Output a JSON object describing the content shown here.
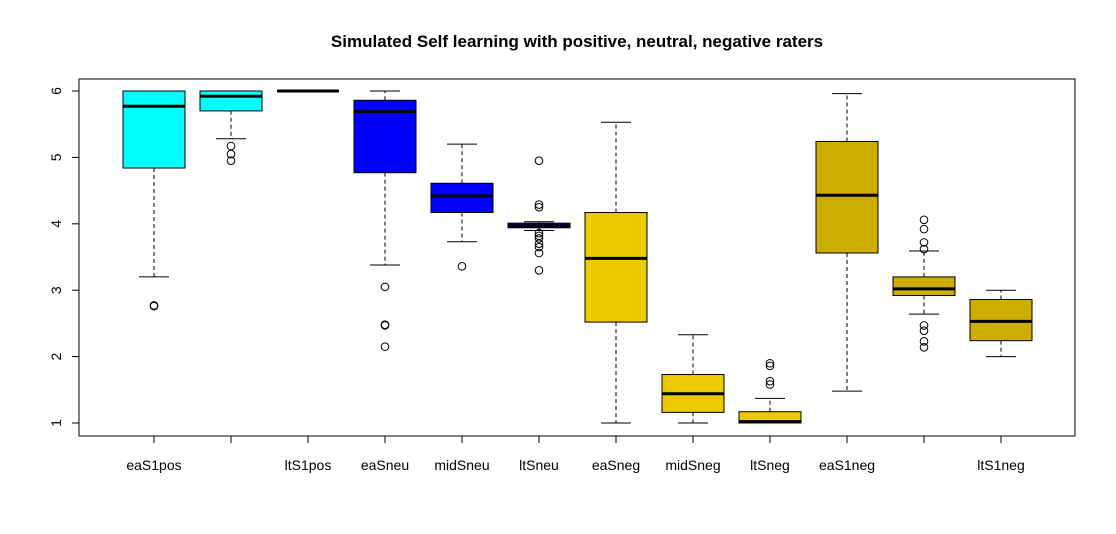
{
  "chart_data": {
    "type": "boxplot",
    "title": "Simulated Self learning with positive, neutral, negative raters",
    "xlabel": "",
    "ylabel": "",
    "ylim": [
      1,
      6
    ],
    "y_ticks": [
      1,
      2,
      3,
      4,
      5,
      6
    ],
    "box_count": 12,
    "categories": [
      "eaS1pos",
      "",
      "ltS1pos",
      "eaSneu",
      "midSneu",
      "ltSneu",
      "eaSneg",
      "midSneg",
      "ltSneg",
      "eaS1neg",
      "",
      "ltS1neg"
    ],
    "colors": [
      "#00ffff",
      "#00ffff",
      "#00ffff",
      "#0000ff",
      "#0000ff",
      "#0000ff",
      "#eec900",
      "#eec900",
      "#eec900",
      "#cdad00",
      "#cdad00",
      "#cdad00"
    ],
    "boxes": [
      {
        "whisker_low": 3.2,
        "q1": 4.84,
        "median": 5.77,
        "q3": 6.0,
        "whisker_high": 6.0,
        "outliers": [
          2.76,
          2.77
        ]
      },
      {
        "whisker_low": 5.28,
        "q1": 5.7,
        "median": 5.92,
        "q3": 6.0,
        "whisker_high": 6.0,
        "outliers": [
          5.17,
          5.05,
          4.95
        ]
      },
      {
        "whisker_low": 6.0,
        "q1": 6.0,
        "median": 6.0,
        "q3": 6.0,
        "whisker_high": 6.0,
        "outliers": []
      },
      {
        "whisker_low": 3.38,
        "q1": 4.77,
        "median": 5.69,
        "q3": 5.86,
        "whisker_high": 6.0,
        "outliers": [
          3.05,
          2.48,
          2.47,
          2.15
        ]
      },
      {
        "whisker_low": 3.73,
        "q1": 4.17,
        "median": 4.42,
        "q3": 4.61,
        "whisker_high": 5.2,
        "outliers": [
          3.36
        ]
      },
      {
        "whisker_low": 3.9,
        "q1": 3.94,
        "median": 3.97,
        "q3": 4.01,
        "whisker_high": 4.03,
        "outliers": [
          4.95,
          4.29,
          4.25,
          3.86,
          3.82,
          3.78,
          3.7,
          3.65,
          3.56,
          3.3
        ]
      },
      {
        "whisker_low": 1.0,
        "q1": 2.52,
        "median": 3.48,
        "q3": 4.17,
        "whisker_high": 5.53,
        "outliers": []
      },
      {
        "whisker_low": 1.0,
        "q1": 1.16,
        "median": 1.44,
        "q3": 1.73,
        "whisker_high": 2.33,
        "outliers": []
      },
      {
        "whisker_low": 1.0,
        "q1": 1.0,
        "median": 1.02,
        "q3": 1.17,
        "whisker_high": 1.37,
        "outliers": [
          1.9,
          1.86,
          1.63,
          1.58
        ]
      },
      {
        "whisker_low": 1.48,
        "q1": 3.56,
        "median": 4.43,
        "q3": 5.24,
        "whisker_high": 5.96,
        "outliers": []
      },
      {
        "whisker_low": 2.64,
        "q1": 2.92,
        "median": 3.02,
        "q3": 3.2,
        "whisker_high": 3.59,
        "outliers": [
          4.06,
          3.92,
          3.72,
          3.62,
          2.47,
          2.39,
          2.23,
          2.14
        ]
      },
      {
        "whisker_low": 2.0,
        "q1": 2.24,
        "median": 2.53,
        "q3": 2.86,
        "whisker_high": 3.0,
        "outliers": []
      }
    ]
  }
}
